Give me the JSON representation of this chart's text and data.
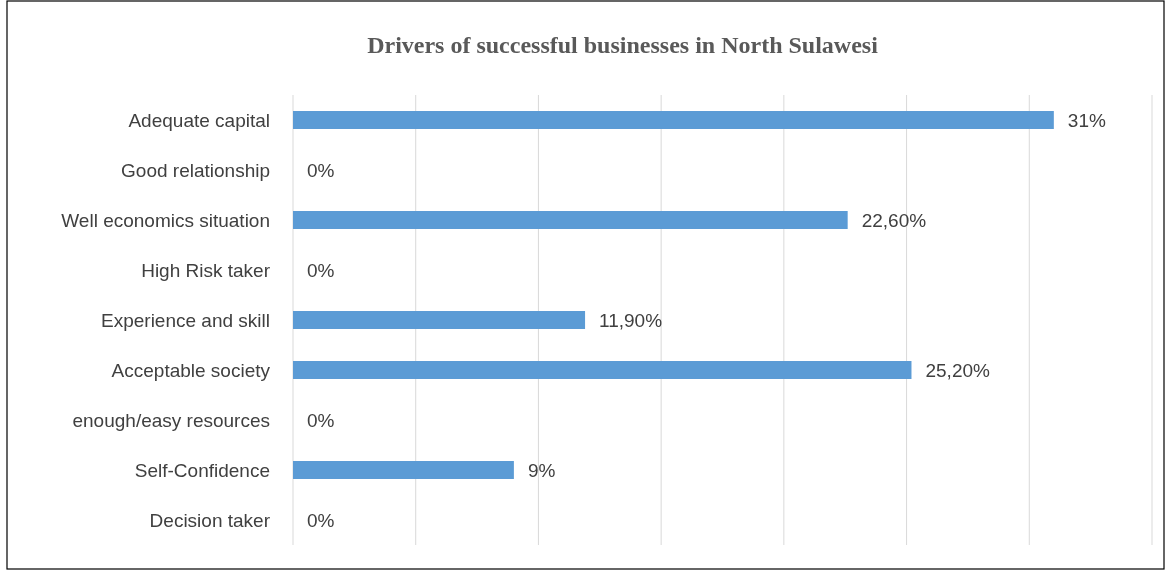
{
  "chart_data": {
    "type": "bar",
    "orientation": "horizontal",
    "title": "Drivers of  successful businesses in North Sulawesi",
    "categories": [
      "Adequate capital",
      "Good relationship",
      "Well economics situation",
      "High Risk taker",
      "Experience and skill",
      "Acceptable society",
      "enough/easy resources",
      "Self-Confidence",
      "Decision taker"
    ],
    "values": [
      31,
      0,
      22.6,
      0,
      11.9,
      25.2,
      0,
      9,
      0
    ],
    "value_labels": [
      "31%",
      "0%",
      "22,60%",
      "0%",
      "11,90%",
      "25,20%",
      "0%",
      "9%",
      "0%"
    ],
    "color": "#5b9bd5",
    "xlim": [
      0,
      35
    ],
    "xticks": [
      {
        "value": 0,
        "label": null
      },
      {
        "value": 5,
        "label": null
      },
      {
        "value": 10,
        "label": null
      },
      {
        "value": 15,
        "label": null
      },
      {
        "value": 20,
        "label": null
      },
      {
        "value": 25,
        "label": null
      },
      {
        "value": 30,
        "label": null
      },
      {
        "value": 35,
        "label": null
      }
    ],
    "tick_labels": "y",
    "grid": "x"
  }
}
